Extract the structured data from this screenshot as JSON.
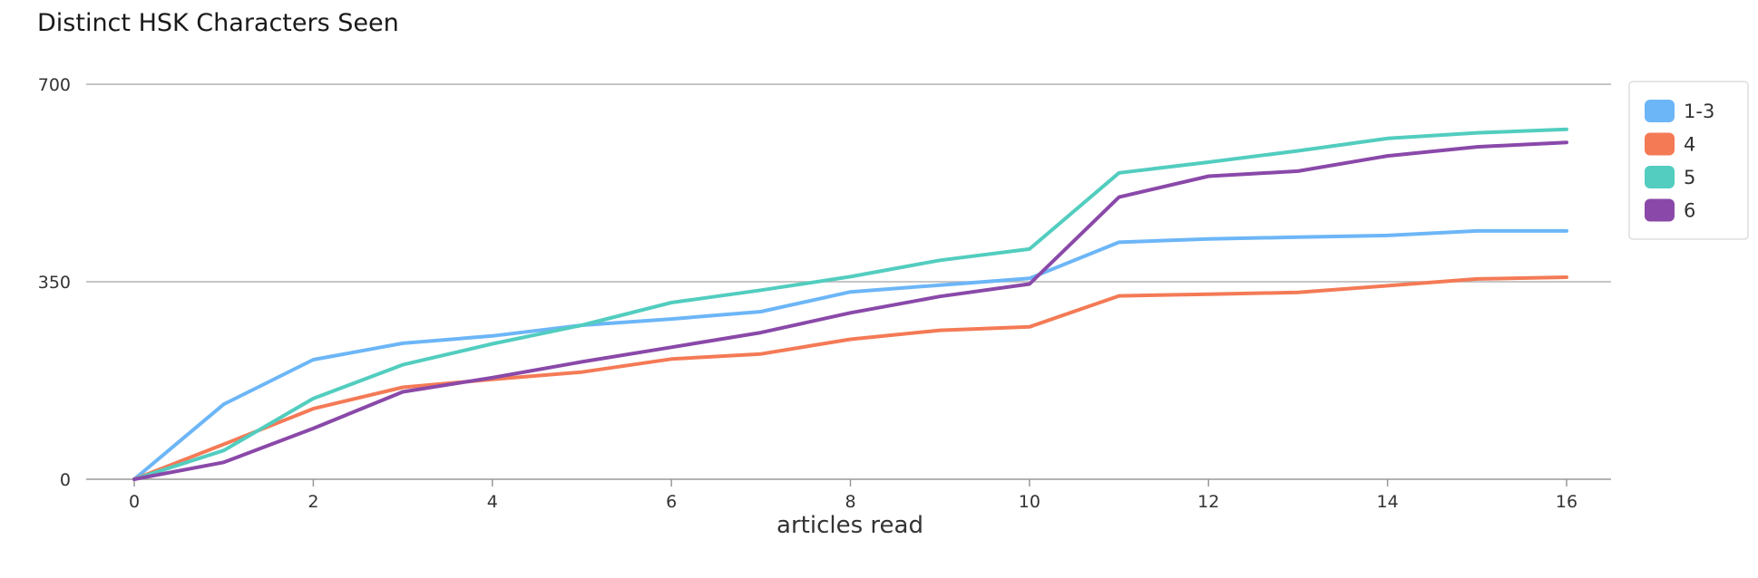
{
  "chart_data": {
    "type": "line",
    "title": "Distinct HSK Characters Seen",
    "xlabel": "articles read",
    "ylabel": "",
    "xlim": [
      0,
      16
    ],
    "ylim": [
      0,
      700
    ],
    "x_ticks": [
      0,
      2,
      4,
      6,
      8,
      10,
      12,
      14,
      16
    ],
    "y_ticks": [
      0,
      350,
      700
    ],
    "grid": true,
    "legend_position": "right",
    "x": [
      0,
      1,
      2,
      3,
      4,
      5,
      6,
      7,
      8,
      9,
      10,
      11,
      12,
      13,
      14,
      15,
      16
    ],
    "series": [
      {
        "name": "1-3",
        "color": "#6cb6f7",
        "values": [
          0,
          133,
          212,
          241,
          254,
          273,
          284,
          297,
          332,
          344,
          356,
          420,
          426,
          429,
          432,
          440,
          440
        ]
      },
      {
        "name": "4",
        "color": "#f47a56",
        "values": [
          0,
          62,
          125,
          163,
          177,
          190,
          213,
          222,
          248,
          264,
          270,
          325,
          328,
          331,
          343,
          355,
          358
        ]
      },
      {
        "name": "5",
        "color": "#52cdbf",
        "values": [
          0,
          51,
          143,
          203,
          240,
          273,
          313,
          335,
          359,
          388,
          408,
          543,
          562,
          582,
          604,
          614,
          620
        ]
      },
      {
        "name": "6",
        "color": "#8a49a9",
        "values": [
          0,
          30,
          90,
          155,
          180,
          208,
          234,
          260,
          295,
          324,
          346,
          500,
          537,
          546,
          573,
          589,
          597
        ]
      }
    ]
  }
}
